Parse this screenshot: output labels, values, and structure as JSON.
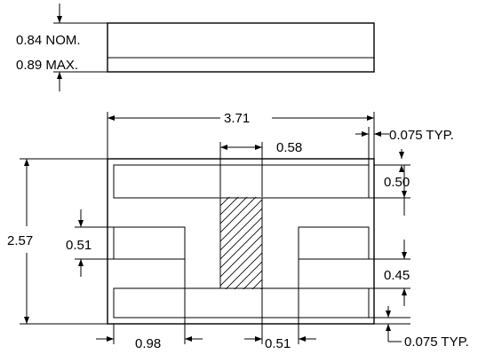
{
  "labels": {
    "thickness_nom": "0.84 NOM.",
    "thickness_max": "0.89 MAX.",
    "overall_width": "3.71",
    "overall_height": "2.57",
    "center_bar_width": "0.58",
    "edge_gap_top": "0.075 TYP.",
    "edge_gap_bottom": "0.075 TYP.",
    "top_pad_height": "0.50",
    "side_pad_height": "0.51",
    "gap_height": "0.45",
    "side_pad_width": "0.98",
    "bottom_gap_width": "0.51"
  }
}
